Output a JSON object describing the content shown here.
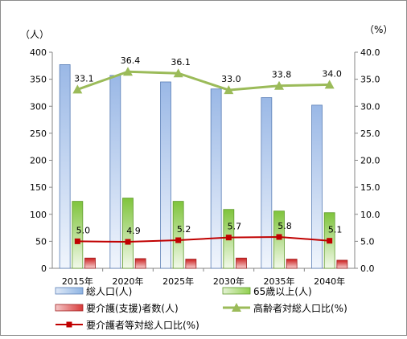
{
  "chart_data": {
    "type": "bar",
    "categories": [
      "2015年",
      "2020年",
      "2025年",
      "2030年",
      "2035年",
      "2040年"
    ],
    "y_left": {
      "unit_label": "（人）",
      "range": [
        0,
        400
      ],
      "ticks": [
        "0",
        "50",
        "100",
        "150",
        "200",
        "250",
        "300",
        "350",
        "400"
      ]
    },
    "y_right": {
      "unit_label": "（%）",
      "range": [
        0,
        40
      ],
      "ticks": [
        "0.0",
        "5.0",
        "10.0",
        "15.0",
        "20.0",
        "25.0",
        "30.0",
        "35.0",
        "40.0"
      ]
    },
    "grid": false,
    "legend_position": "bottom",
    "series": [
      {
        "name": "総人口(人)",
        "type": "bar",
        "axis": "left",
        "color": "#8eb4e3",
        "values": [
          377,
          357,
          345,
          332,
          316,
          302
        ]
      },
      {
        "name": "65歳以上(人)",
        "type": "bar",
        "axis": "left",
        "color": "#92d050",
        "values": [
          124,
          130,
          124,
          109,
          106,
          103
        ]
      },
      {
        "name": "要介護(支援)者数(人)",
        "type": "bar",
        "axis": "left",
        "color": "#e46c6c",
        "values": [
          19,
          18,
          17,
          19,
          17,
          15
        ]
      },
      {
        "name": "高齢者対総人口比(%)",
        "type": "line",
        "axis": "right",
        "color": "#9bbb59",
        "marker": "triangle",
        "values": [
          33.1,
          36.4,
          36.1,
          33.0,
          33.8,
          34.0
        ],
        "labels": [
          "33.1",
          "36.4",
          "36.1",
          "33.0",
          "33.8",
          "34.0"
        ]
      },
      {
        "name": "要介護者等対総人口比(%)",
        "type": "line",
        "axis": "right",
        "color": "#c00000",
        "marker": "square",
        "values": [
          5.0,
          4.9,
          5.2,
          5.7,
          5.8,
          5.1
        ],
        "labels": [
          "5.0",
          "4.9",
          "5.2",
          "5.7",
          "5.8",
          "5.1"
        ]
      }
    ]
  }
}
